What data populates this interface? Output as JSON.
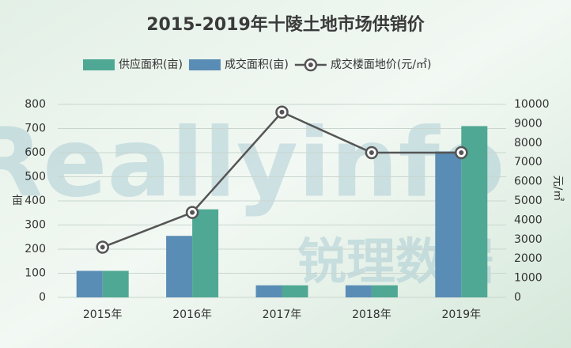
{
  "chart_data": {
    "type": "bar-line",
    "title": "2015-2019年十陵土地市场供销价",
    "watermark": [
      "Reallyinfo",
      "锐理数据"
    ],
    "categories": [
      "2015年",
      "2016年",
      "2017年",
      "2018年",
      "2019年"
    ],
    "series": [
      {
        "name": "供应面积(亩)",
        "color": "#4fa893",
        "type": "bar",
        "values": [
          110,
          365,
          50,
          50,
          710
        ]
      },
      {
        "name": "成交面积(亩)",
        "color": "#5a8db5",
        "type": "bar",
        "values": [
          110,
          255,
          50,
          50,
          605
        ]
      },
      {
        "name": "成交楼面地价(元/㎡)",
        "color": "#555555",
        "type": "line",
        "axis": "y2",
        "values": [
          2600,
          4400,
          9600,
          7500,
          7500
        ]
      }
    ],
    "ylabel": "亩",
    "y2label": "元/㎡",
    "ylim": [
      0,
      800
    ],
    "yticks": [
      0,
      100,
      200,
      300,
      400,
      500,
      600,
      700,
      800
    ],
    "y2lim": [
      0,
      10000
    ],
    "y2ticks": [
      0,
      1000,
      2000,
      3000,
      4000,
      5000,
      6000,
      7000,
      8000,
      9000,
      10000
    ],
    "grid": true
  }
}
